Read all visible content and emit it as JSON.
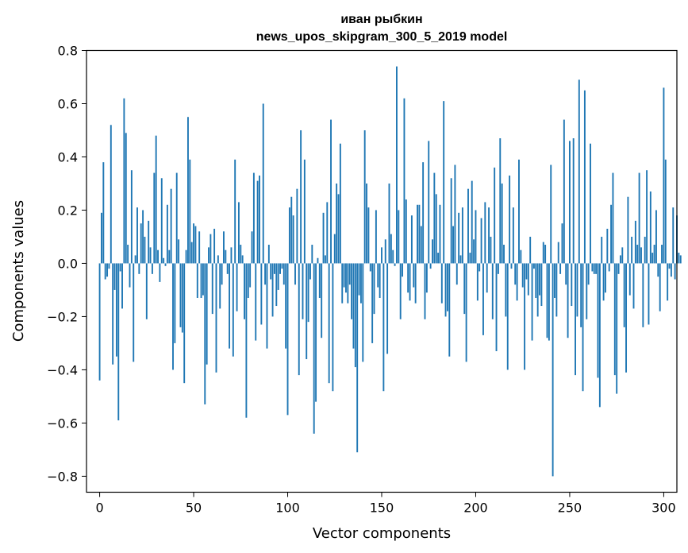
{
  "chart_data": {
    "type": "bar",
    "title": "иван рыбкин",
    "subtitle": "news_upos_skipgram_300_5_2019 model",
    "xlabel": "Vector components",
    "ylabel": "Components values",
    "xlim": [
      -7,
      307
    ],
    "ylim": [
      -0.86,
      0.8
    ],
    "xticks": [
      0,
      50,
      100,
      150,
      200,
      250,
      300
    ],
    "xtick_labels": [
      "0",
      "50",
      "100",
      "150",
      "200",
      "250",
      "300"
    ],
    "yticks": [
      -0.8,
      -0.6,
      -0.4,
      -0.2,
      0.0,
      0.2,
      0.4,
      0.6,
      0.8
    ],
    "ytick_labels": [
      "−0.8",
      "−0.6",
      "−0.4",
      "−0.2",
      "0.0",
      "0.2",
      "0.4",
      "0.6",
      "0.8"
    ],
    "bar_color": "#1f77b4",
    "grid": false,
    "values": [
      -0.44,
      0.19,
      0.38,
      -0.06,
      -0.05,
      -0.02,
      0.52,
      -0.38,
      -0.1,
      -0.35,
      -0.59,
      -0.03,
      -0.17,
      0.62,
      0.49,
      0.07,
      -0.09,
      0.35,
      -0.37,
      0.03,
      0.21,
      -0.04,
      0.15,
      0.2,
      0.1,
      -0.21,
      0.16,
      0.06,
      -0.04,
      0.34,
      0.48,
      0.05,
      -0.07,
      0.32,
      0.02,
      -0.01,
      0.22,
      0.05,
      0.28,
      -0.4,
      -0.3,
      0.34,
      0.09,
      -0.24,
      -0.26,
      -0.45,
      0.05,
      0.55,
      0.39,
      0.08,
      0.15,
      0.14,
      -0.13,
      0.12,
      -0.13,
      -0.12,
      -0.53,
      -0.38,
      0.06,
      0.11,
      -0.19,
      0.13,
      -0.41,
      0.03,
      -0.17,
      -0.08,
      0.12,
      0.05,
      -0.04,
      -0.32,
      0.06,
      -0.35,
      0.39,
      -0.18,
      0.23,
      0.07,
      0.03,
      -0.21,
      -0.58,
      -0.13,
      -0.09,
      0.12,
      0.34,
      -0.29,
      0.31,
      0.33,
      -0.23,
      0.6,
      -0.08,
      -0.32,
      0.07,
      -0.06,
      -0.2,
      -0.04,
      -0.16,
      -0.1,
      -0.04,
      -0.02,
      -0.08,
      -0.32,
      -0.57,
      0.21,
      0.25,
      0.18,
      -0.08,
      0.28,
      -0.42,
      0.5,
      -0.21,
      0.39,
      -0.36,
      -0.22,
      -0.06,
      0.07,
      -0.64,
      -0.52,
      0.02,
      -0.13,
      -0.28,
      0.19,
      0.03,
      0.23,
      -0.45,
      0.54,
      -0.48,
      0.11,
      0.3,
      0.26,
      0.45,
      -0.15,
      -0.09,
      -0.11,
      -0.15,
      -0.08,
      -0.21,
      -0.32,
      -0.39,
      -0.71,
      -0.12,
      -0.15,
      -0.37,
      0.5,
      0.3,
      0.21,
      -0.03,
      -0.3,
      -0.19,
      0.2,
      -0.09,
      -0.13,
      0.06,
      -0.48,
      0.09,
      -0.34,
      0.3,
      0.11,
      0.05,
      -0.01,
      0.74,
      0.2,
      -0.21,
      -0.05,
      0.62,
      0.24,
      -0.11,
      -0.14,
      0.18,
      -0.09,
      -0.15,
      0.22,
      0.22,
      0.14,
      0.38,
      -0.21,
      -0.11,
      0.46,
      -0.02,
      0.09,
      0.34,
      0.26,
      0.04,
      0.22,
      -0.15,
      0.61,
      -0.2,
      -0.18,
      -0.35,
      0.32,
      0.14,
      0.37,
      -0.08,
      0.19,
      0.03,
      0.21,
      -0.19,
      -0.37,
      0.28,
      0.04,
      0.31,
      0.09,
      0.2,
      -0.14,
      -0.03,
      0.17,
      -0.27,
      0.23,
      -0.11,
      0.21,
      0.1,
      -0.21,
      0.36,
      -0.33,
      -0.04,
      0.47,
      0.3,
      0.07,
      -0.2,
      -0.4,
      0.33,
      -0.02,
      0.21,
      -0.08,
      -0.14,
      0.39,
      0.05,
      -0.09,
      -0.4,
      -0.06,
      -0.12,
      0.1,
      -0.29,
      -0.02,
      -0.13,
      -0.2,
      -0.12,
      -0.16,
      0.08,
      0.07,
      -0.28,
      -0.29,
      0.37,
      -0.8,
      -0.13,
      -0.2,
      0.08,
      -0.04,
      0.15,
      0.54,
      -0.08,
      -0.28,
      0.46,
      -0.16,
      0.47,
      -0.42,
      -0.2,
      0.69,
      -0.24,
      -0.48,
      0.65,
      -0.21,
      -0.08,
      0.45,
      -0.03,
      -0.04,
      -0.04,
      -0.43,
      -0.54,
      0.1,
      -0.14,
      -0.11,
      0.13,
      -0.03,
      0.22,
      0.34,
      -0.42,
      -0.49,
      -0.04,
      0.03,
      0.06,
      -0.24,
      -0.41,
      0.25,
      -0.12,
      0.1,
      -0.17,
      0.16,
      0.07,
      0.34,
      0.06,
      -0.24,
      0.1,
      0.35,
      -0.23,
      0.27,
      0.04,
      0.07,
      0.2,
      -0.05,
      -0.18,
      0.07,
      0.66,
      0.39,
      -0.14,
      -0.02,
      -0.05,
      0.21,
      -0.06,
      0.18,
      0.04,
      0.03
    ]
  }
}
